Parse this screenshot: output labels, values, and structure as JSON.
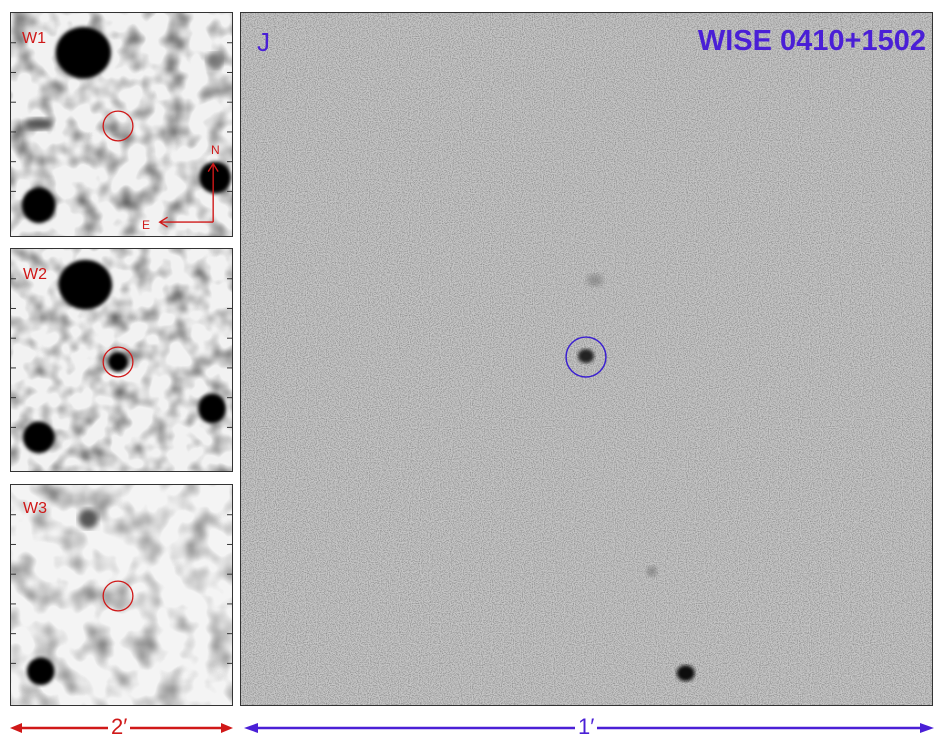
{
  "target": "WISE 0410+1502",
  "panels": {
    "w1": {
      "label": "W1"
    },
    "w2": {
      "label": "W2"
    },
    "w3": {
      "label": "W3"
    },
    "j": {
      "label": "J"
    }
  },
  "compass": {
    "north": "N",
    "east": "E"
  },
  "scalebars": {
    "wise": {
      "label": "2′"
    },
    "j": {
      "label": "1′"
    }
  },
  "colors": {
    "wise_overlay": "#d01818",
    "j_overlay": "#4a1fd6",
    "frame": "#333333"
  }
}
